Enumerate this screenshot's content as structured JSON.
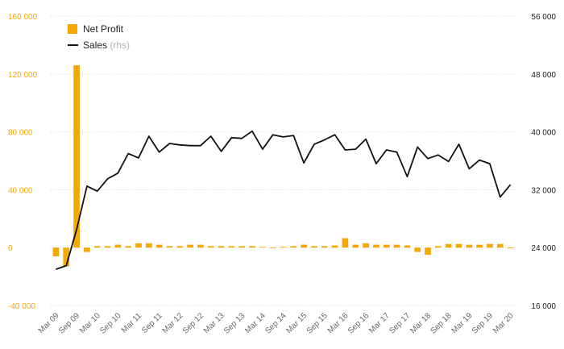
{
  "chart_data": {
    "type": "bar+line",
    "legend": {
      "placement": "top-left",
      "items": [
        {
          "label": "Net Profit",
          "suffix": "",
          "kind": "bar",
          "color": "#f5a800"
        },
        {
          "label": "Sales",
          "suffix": "(rhs)",
          "kind": "line",
          "color": "#111111"
        }
      ]
    },
    "left_axis": {
      "range": [
        -40000,
        160000
      ],
      "ticks": [
        -40000,
        0,
        40000,
        80000,
        120000,
        160000
      ],
      "tick_labels": [
        "-40 000",
        "0",
        "40 000",
        "80 000",
        "120 000",
        "160 000"
      ],
      "color": "#f5a800"
    },
    "right_axis": {
      "range": [
        16000,
        56000
      ],
      "ticks": [
        16000,
        24000,
        32000,
        40000,
        48000,
        56000
      ],
      "tick_labels": [
        "16 000",
        "24 000",
        "32 000",
        "40 000",
        "48 000",
        "56 000"
      ],
      "color": "#222222"
    },
    "grid": true,
    "x_labels": [
      "Mar 09",
      "Sep 09",
      "Mar 10",
      "Sep 10",
      "Mar 11",
      "Sep 11",
      "Mar 12",
      "Sep 12",
      "Mar 13",
      "Sep 13",
      "Mar 14",
      "Sep 14",
      "Mar 15",
      "Sep 15",
      "Mar 16",
      "Sep 16",
      "Mar 17",
      "Sep 17",
      "Mar 18",
      "Sep 18",
      "Mar 19",
      "Sep 19",
      "Mar 20"
    ],
    "periods": [
      "Mar 09",
      "Jun 09",
      "Sep 09",
      "Dec 09",
      "Mar 10",
      "Jun 10",
      "Sep 10",
      "Dec 10",
      "Mar 11",
      "Jun 11",
      "Sep 11",
      "Dec 11",
      "Mar 12",
      "Jun 12",
      "Sep 12",
      "Dec 12",
      "Mar 13",
      "Jun 13",
      "Sep 13",
      "Dec 13",
      "Mar 14",
      "Jun 14",
      "Sep 14",
      "Dec 14",
      "Mar 15",
      "Jun 15",
      "Sep 15",
      "Dec 15",
      "Mar 16",
      "Jun 16",
      "Sep 16",
      "Dec 16",
      "Mar 17",
      "Jun 17",
      "Sep 17",
      "Dec 17",
      "Mar 18",
      "Jun 18",
      "Sep 18",
      "Dec 18",
      "Mar 19",
      "Jun 19",
      "Sep 19",
      "Dec 19",
      "Mar 20"
    ],
    "series": [
      {
        "name": "Net Profit",
        "axis": "left",
        "type": "bar",
        "color": "#f5a800",
        "values": [
          -6000,
          -13000,
          126000,
          -3000,
          1000,
          1000,
          2000,
          1000,
          3000,
          3000,
          2000,
          1000,
          1000,
          2000,
          2000,
          1000,
          1000,
          1000,
          1000,
          1000,
          500,
          -500,
          500,
          1000,
          2000,
          1000,
          1000,
          1500,
          6500,
          2000,
          3000,
          2000,
          2000,
          2000,
          1500,
          -3000,
          -5000,
          1000,
          2500,
          2500,
          2000,
          2000,
          2500,
          2500,
          -500
        ]
      },
      {
        "name": "Sales",
        "axis": "right",
        "type": "line",
        "color": "#111111",
        "values": [
          21000,
          21500,
          26500,
          32500,
          31800,
          33500,
          34300,
          37000,
          36400,
          39400,
          37200,
          38400,
          38200,
          38100,
          38100,
          39400,
          37300,
          39200,
          39100,
          40100,
          37600,
          39600,
          39300,
          39500,
          35700,
          38300,
          38900,
          39600,
          37500,
          37600,
          39000,
          35600,
          37500,
          37200,
          33800,
          37900,
          36300,
          36800,
          35900,
          38300,
          34900,
          36100,
          35600,
          31000,
          32700
        ]
      }
    ]
  }
}
